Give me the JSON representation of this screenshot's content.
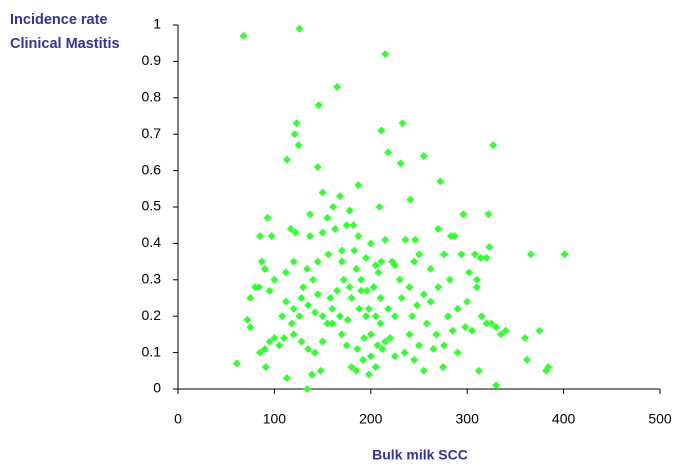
{
  "chart_data": {
    "type": "scatter",
    "y_label": "Incidence rate Clinical Mastitis",
    "x_label": "Bulk milk SCC",
    "color": "#33ff33",
    "xlim": [
      0,
      500
    ],
    "xticks": [
      0,
      100,
      200,
      300,
      400,
      500
    ],
    "ylim": [
      0,
      1
    ],
    "yticks": [
      0,
      0.1,
      0.2,
      0.3,
      0.4,
      0.5,
      0.6,
      0.7,
      0.8,
      0.9,
      1
    ],
    "x": [
      68,
      126,
      215,
      165,
      146,
      123,
      121,
      125,
      113,
      211,
      233,
      218,
      231,
      255,
      327,
      145,
      272,
      187,
      168,
      150,
      241,
      209,
      161,
      178,
      137,
      155,
      322,
      296,
      93,
      85,
      97,
      117,
      122,
      137,
      150,
      163,
      175,
      182,
      187,
      200,
      215,
      236,
      246,
      270,
      283,
      287,
      323,
      366,
      401,
      314,
      320,
      294,
      276,
      250,
      245,
      225,
      205,
      195,
      183,
      170,
      156,
      145,
      134,
      120,
      112,
      87,
      90,
      100,
      84,
      80,
      95,
      75,
      112,
      120,
      128,
      135,
      142,
      150,
      160,
      165,
      172,
      178,
      185,
      190,
      196,
      203,
      210,
      218,
      225,
      232,
      240,
      248,
      255,
      262,
      270,
      280,
      290,
      300,
      310,
      320,
      330,
      340,
      360,
      375,
      298,
      305,
      315,
      325,
      335,
      362,
      382,
      384,
      330,
      312,
      290,
      275,
      265,
      255,
      245,
      235,
      225,
      215,
      205,
      198,
      192,
      185,
      180,
      175,
      170,
      160,
      155,
      150,
      142,
      135,
      128,
      120,
      110,
      105,
      100,
      95,
      90,
      85,
      75,
      72,
      61,
      91,
      113,
      134,
      139,
      148,
      200,
      205,
      210,
      212,
      220,
      195,
      188,
      180,
      176,
      168,
      158,
      145,
      140,
      130,
      126,
      118,
      108,
      240,
      250,
      258,
      268,
      276,
      285,
      230,
      222,
      208,
      198,
      193,
      186,
      200,
      207,
      211,
      190,
      170,
      243,
      262,
      282,
      308,
      310,
      302
    ],
    "y": [
      0.97,
      0.99,
      0.92,
      0.83,
      0.78,
      0.73,
      0.7,
      0.67,
      0.63,
      0.71,
      0.73,
      0.65,
      0.62,
      0.64,
      0.67,
      0.61,
      0.57,
      0.56,
      0.53,
      0.54,
      0.52,
      0.5,
      0.5,
      0.49,
      0.48,
      0.47,
      0.48,
      0.48,
      0.47,
      0.42,
      0.42,
      0.44,
      0.43,
      0.42,
      0.43,
      0.44,
      0.45,
      0.45,
      0.42,
      0.4,
      0.41,
      0.41,
      0.41,
      0.44,
      0.42,
      0.42,
      0.39,
      0.37,
      0.37,
      0.36,
      0.36,
      0.37,
      0.37,
      0.37,
      0.35,
      0.34,
      0.34,
      0.36,
      0.38,
      0.38,
      0.37,
      0.35,
      0.33,
      0.35,
      0.32,
      0.35,
      0.33,
      0.3,
      0.28,
      0.28,
      0.27,
      0.25,
      0.24,
      0.22,
      0.25,
      0.23,
      0.21,
      0.2,
      0.22,
      0.27,
      0.3,
      0.28,
      0.33,
      0.3,
      0.27,
      0.28,
      0.25,
      0.22,
      0.2,
      0.25,
      0.28,
      0.23,
      0.26,
      0.24,
      0.28,
      0.2,
      0.22,
      0.24,
      0.28,
      0.18,
      0.17,
      0.16,
      0.14,
      0.16,
      0.17,
      0.16,
      0.2,
      0.18,
      0.15,
      0.08,
      0.05,
      0.06,
      0.01,
      0.05,
      0.1,
      0.06,
      0.11,
      0.05,
      0.08,
      0.1,
      0.09,
      0.13,
      0.06,
      0.04,
      0.08,
      0.05,
      0.06,
      0.12,
      0.15,
      0.18,
      0.18,
      0.13,
      0.1,
      0.11,
      0.13,
      0.15,
      0.14,
      0.12,
      0.14,
      0.13,
      0.11,
      0.1,
      0.17,
      0.19,
      0.07,
      0.06,
      0.03,
      0,
      0.04,
      0.05,
      0.15,
      0.2,
      0.18,
      0.11,
      0.14,
      0.2,
      0.22,
      0.25,
      0.19,
      0.2,
      0.25,
      0.26,
      0.3,
      0.28,
      0.2,
      0.18,
      0.2,
      0.15,
      0.12,
      0.18,
      0.15,
      0.12,
      0.16,
      0.3,
      0.35,
      0.32,
      0.22,
      0.14,
      0.11,
      0.09,
      0.12,
      0.35,
      0.27,
      0.35,
      0.2,
      0.33,
      0.3,
      0.37,
      0.3,
      0.32
    ]
  }
}
